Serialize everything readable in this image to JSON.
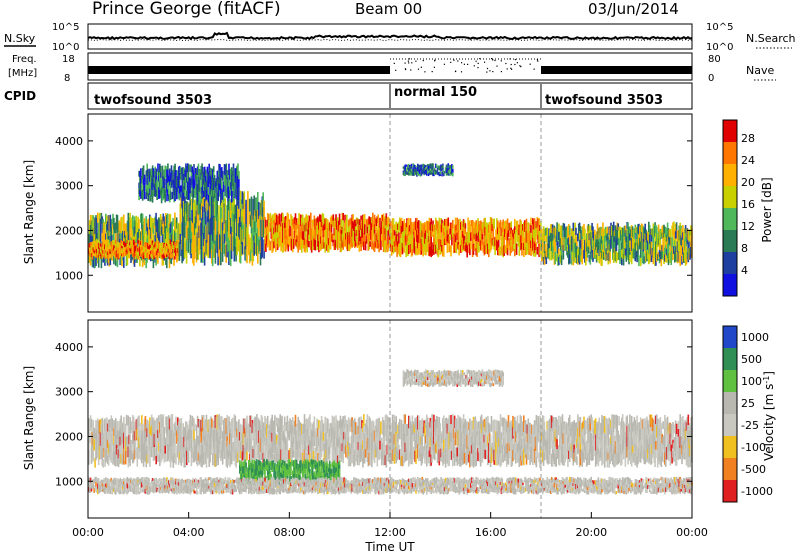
{
  "header": {
    "station": "Prince George (fitACF)",
    "beam": "Beam 00",
    "date": "03/Jun/2014"
  },
  "noise_panel": {
    "left_label": "N.Sky",
    "right_label": "N.Search",
    "left_ticks": [
      "10^5",
      "10^0"
    ],
    "right_ticks": [
      "10^5",
      "10^0"
    ]
  },
  "freq_panel": {
    "left_label_line1": "Freq.",
    "left_label_line2": "[MHz]",
    "left_ticks": [
      "18",
      "8"
    ],
    "right_label": "Nave",
    "right_ticks": [
      "80",
      "0"
    ]
  },
  "cpid_panel": {
    "label": "CPID",
    "segments": [
      {
        "label": "twofsound 3503",
        "start_hour": 0
      },
      {
        "label": "normal 150",
        "start_hour": 12
      },
      {
        "label": "twofsound 3503",
        "start_hour": 18
      }
    ]
  },
  "chart_data": [
    {
      "type": "heatmap",
      "ylabel": "Slant Range [km]",
      "yticks": [
        1000,
        2000,
        3000,
        4000
      ],
      "ylim": [
        180,
        4600
      ],
      "colorbar_label": "Power [dB]",
      "colorbar_ticks": [
        "28",
        "24",
        "20",
        "16",
        "12",
        "8",
        "4"
      ],
      "colorbar_colors": [
        "#e00000",
        "#ff7700",
        "#ffb000",
        "#c8d000",
        "#4fb85a",
        "#2a7a55",
        "#1f3fa0",
        "#1010e0"
      ],
      "vertical_markers_hour": [
        12,
        18
      ],
      "bands": [
        {
          "t0": 0.0,
          "t1": 3.6,
          "r0": 1150,
          "r1": 2400,
          "level": "mid"
        },
        {
          "t0": 0.0,
          "t1": 3.6,
          "r0": 1350,
          "r1": 1800,
          "level": "high"
        },
        {
          "t0": 3.6,
          "t1": 7.0,
          "r0": 1200,
          "r1": 2900,
          "level": "mid"
        },
        {
          "t0": 7.0,
          "t1": 12.0,
          "r0": 1500,
          "r1": 2400,
          "level": "high"
        },
        {
          "t0": 12.0,
          "t1": 18.0,
          "r0": 1400,
          "r1": 2300,
          "level": "high"
        },
        {
          "t0": 18.0,
          "t1": 24.0,
          "r0": 1200,
          "r1": 2200,
          "level": "mid"
        },
        {
          "t0": 12.5,
          "t1": 14.5,
          "r0": 3200,
          "r1": 3500,
          "level": "low"
        },
        {
          "t0": 2.0,
          "t1": 6.0,
          "r0": 2600,
          "r1": 3500,
          "level": "low"
        }
      ]
    },
    {
      "type": "heatmap",
      "ylabel": "Slant Range [km]",
      "yticks": [
        1000,
        2000,
        3000,
        4000
      ],
      "ylim": [
        180,
        4600
      ],
      "colorbar_label": "Velocity [m s^-1]",
      "colorbar_ticks": [
        "1000",
        "500",
        "100",
        "25",
        "-25",
        "-100",
        "-500",
        "-1000"
      ],
      "colorbar_colors": [
        "#2048c8",
        "#2f8f55",
        "#60c040",
        "#b8b8b0",
        "#c8c8c0",
        "#f0c020",
        "#f08020",
        "#e02020"
      ],
      "vertical_markers_hour": [
        12,
        18
      ],
      "bands": [
        {
          "t0": 0.0,
          "t1": 24.0,
          "r0": 1300,
          "r1": 2500,
          "level": "zero"
        },
        {
          "t0": 6.0,
          "t1": 10.0,
          "r0": 900,
          "r1": 1500,
          "level": "positive"
        },
        {
          "t0": 12.5,
          "t1": 16.5,
          "r0": 3100,
          "r1": 3500,
          "level": "zero"
        },
        {
          "t0": 0.0,
          "t1": 24.0,
          "r0": 700,
          "r1": 1100,
          "level": "zero"
        }
      ],
      "xticks": [
        "00:00",
        "04:00",
        "08:00",
        "12:00",
        "16:00",
        "20:00",
        "00:00"
      ],
      "xlabel": "Time UT"
    }
  ]
}
